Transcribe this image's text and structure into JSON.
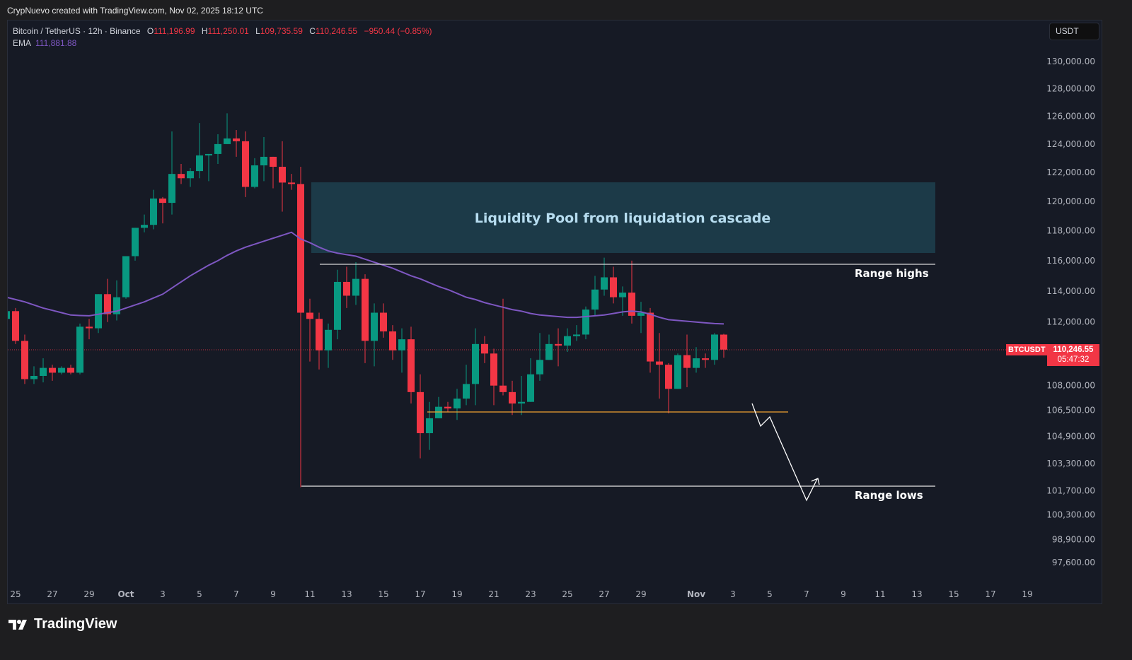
{
  "credit": "CrypNuevo created with TradingView.com, Nov 02, 2025 18:12 UTC",
  "legend": {
    "symbol": "Bitcoin / TetherUS · 12h · Binance",
    "o_label": "O",
    "o": "111,196.99",
    "h_label": "H",
    "h": "111,250.01",
    "l_label": "L",
    "l": "109,735.59",
    "c_label": "C",
    "c": "110,246.55",
    "change": "−950.44 (−0.85%)",
    "ema_label": "EMA",
    "ema": "111,881.88"
  },
  "currency_button": "USDT",
  "last_price": {
    "symbol": "BTCUSDT",
    "price": "110,246.55",
    "countdown": "05:47:32"
  },
  "brand": "TradingView",
  "colors": {
    "up": "#089981",
    "down": "#f23645",
    "ema": "#7e57c2",
    "zone": "#1c3a48",
    "support": "#f0a030"
  },
  "annotations": {
    "zone_label": "Liquidity Pool from liquidation cascade",
    "range_highs": "Range highs",
    "range_lows": "Range lows"
  },
  "chart_data": {
    "type": "candlestick",
    "interval": "12h",
    "y_scale": "log",
    "ylim": [
      96800,
      131500
    ],
    "grid": false,
    "y_ticks": [
      {
        "value": 130000,
        "label": "130,000.00"
      },
      {
        "value": 128000,
        "label": "128,000.00"
      },
      {
        "value": 126000,
        "label": "126,000.00"
      },
      {
        "value": 124000,
        "label": "124,000.00"
      },
      {
        "value": 122000,
        "label": "122,000.00"
      },
      {
        "value": 120000,
        "label": "120,000.00"
      },
      {
        "value": 118000,
        "label": "118,000.00"
      },
      {
        "value": 116000,
        "label": "116,000.00"
      },
      {
        "value": 114000,
        "label": "114,000.00"
      },
      {
        "value": 112000,
        "label": "112,000.00"
      },
      {
        "value": 108000,
        "label": "108,000.00"
      },
      {
        "value": 106500,
        "label": "106,500.00"
      },
      {
        "value": 104900,
        "label": "104,900.00"
      },
      {
        "value": 103300,
        "label": "103,300.00"
      },
      {
        "value": 101700,
        "label": "101,700.00"
      },
      {
        "value": 100300,
        "label": "100,300.00"
      },
      {
        "value": 98900,
        "label": "98,900.00"
      },
      {
        "value": 97600,
        "label": "97,600.00"
      }
    ],
    "x_ticks": [
      {
        "date": "2025-09-25",
        "label": "25"
      },
      {
        "date": "2025-09-27",
        "label": "27"
      },
      {
        "date": "2025-09-29",
        "label": "29"
      },
      {
        "date": "2025-10-01",
        "label": "Oct"
      },
      {
        "date": "2025-10-03",
        "label": "3"
      },
      {
        "date": "2025-10-05",
        "label": "5"
      },
      {
        "date": "2025-10-07",
        "label": "7"
      },
      {
        "date": "2025-10-09",
        "label": "9"
      },
      {
        "date": "2025-10-11",
        "label": "11"
      },
      {
        "date": "2025-10-13",
        "label": "13"
      },
      {
        "date": "2025-10-15",
        "label": "15"
      },
      {
        "date": "2025-10-17",
        "label": "17"
      },
      {
        "date": "2025-10-19",
        "label": "19"
      },
      {
        "date": "2025-10-21",
        "label": "21"
      },
      {
        "date": "2025-10-23",
        "label": "23"
      },
      {
        "date": "2025-10-25",
        "label": "25"
      },
      {
        "date": "2025-10-27",
        "label": "27"
      },
      {
        "date": "2025-10-29",
        "label": "29"
      },
      {
        "date": "2025-11-01",
        "label": "Nov"
      },
      {
        "date": "2025-11-03",
        "label": "3"
      },
      {
        "date": "2025-11-05",
        "label": "5"
      },
      {
        "date": "2025-11-07",
        "label": "7"
      },
      {
        "date": "2025-11-09",
        "label": "9"
      },
      {
        "date": "2025-11-11",
        "label": "11"
      },
      {
        "date": "2025-11-13",
        "label": "13"
      },
      {
        "date": "2025-11-15",
        "label": "15"
      },
      {
        "date": "2025-11-17",
        "label": "17"
      },
      {
        "date": "2025-11-19",
        "label": "19"
      }
    ],
    "candle_fields": [
      "time",
      "open",
      "high",
      "low",
      "close"
    ],
    "candles": [
      [
        "2025-09-24 12:00",
        112200,
        112900,
        111900,
        112700
      ],
      [
        "2025-09-25 00:00",
        112700,
        112900,
        110600,
        110800
      ],
      [
        "2025-09-25 12:00",
        110800,
        111200,
        108100,
        108400
      ],
      [
        "2025-09-26 00:00",
        108400,
        109200,
        108100,
        108600
      ],
      [
        "2025-09-26 12:00",
        108600,
        109700,
        108200,
        109100
      ],
      [
        "2025-09-27 00:00",
        109100,
        109300,
        108300,
        108800
      ],
      [
        "2025-09-27 12:00",
        108800,
        109200,
        108700,
        109100
      ],
      [
        "2025-09-28 00:00",
        109100,
        109300,
        108700,
        108800
      ],
      [
        "2025-09-28 12:00",
        108800,
        111900,
        108700,
        111700
      ],
      [
        "2025-09-29 00:00",
        111700,
        112200,
        110900,
        111600
      ],
      [
        "2025-09-29 12:00",
        111600,
        113800,
        111300,
        113800
      ],
      [
        "2025-09-30 00:00",
        113800,
        114800,
        112000,
        112500
      ],
      [
        "2025-09-30 12:00",
        112500,
        114700,
        112100,
        113600
      ],
      [
        "2025-10-01 00:00",
        113600,
        116300,
        113500,
        116300
      ],
      [
        "2025-10-01 12:00",
        116300,
        118200,
        116000,
        118200
      ],
      [
        "2025-10-02 00:00",
        118200,
        119100,
        117900,
        118400
      ],
      [
        "2025-10-02 12:00",
        118400,
        120800,
        118100,
        120200
      ],
      [
        "2025-10-03 00:00",
        120200,
        120300,
        118500,
        119900
      ],
      [
        "2025-10-03 12:00",
        119900,
        124900,
        119100,
        121900
      ],
      [
        "2025-10-04 00:00",
        121900,
        122600,
        121200,
        121600
      ],
      [
        "2025-10-04 12:00",
        121600,
        122300,
        121000,
        122100
      ],
      [
        "2025-10-05 00:00",
        122100,
        125500,
        121600,
        123200
      ],
      [
        "2025-10-05 12:00",
        123200,
        123300,
        121400,
        123300
      ],
      [
        "2025-10-06 00:00",
        123300,
        124700,
        122600,
        124000
      ],
      [
        "2025-10-06 12:00",
        124000,
        126200,
        124000,
        124400
      ],
      [
        "2025-10-07 00:00",
        124400,
        125000,
        123100,
        124200
      ],
      [
        "2025-10-07 12:00",
        124200,
        124900,
        120300,
        121000
      ],
      [
        "2025-10-08 00:00",
        121000,
        123000,
        120900,
        122500
      ],
      [
        "2025-10-08 12:00",
        122500,
        124500,
        121400,
        123100
      ],
      [
        "2025-10-09 00:00",
        123100,
        123100,
        120900,
        122400
      ],
      [
        "2025-10-09 12:00",
        122400,
        124200,
        119300,
        121300
      ],
      [
        "2025-10-10 00:00",
        121300,
        121900,
        120800,
        121200
      ],
      [
        "2025-10-10 12:00",
        121200,
        122400,
        101900,
        112600
      ],
      [
        "2025-10-11 00:00",
        112600,
        113500,
        109500,
        112200
      ],
      [
        "2025-10-11 12:00",
        112200,
        112600,
        109000,
        110200
      ],
      [
        "2025-10-12 00:00",
        110200,
        111900,
        109100,
        111500
      ],
      [
        "2025-10-12 12:00",
        111500,
        115400,
        110900,
        114600
      ],
      [
        "2025-10-13 00:00",
        114600,
        115600,
        112900,
        113700
      ],
      [
        "2025-10-13 12:00",
        113700,
        115900,
        113100,
        114800
      ],
      [
        "2025-10-14 00:00",
        114800,
        115100,
        109400,
        110800
      ],
      [
        "2025-10-14 12:00",
        110800,
        113200,
        109200,
        112600
      ],
      [
        "2025-10-15 00:00",
        112600,
        113200,
        111000,
        111400
      ],
      [
        "2025-10-15 12:00",
        111400,
        111800,
        109600,
        110200
      ],
      [
        "2025-10-16 00:00",
        110200,
        111600,
        108800,
        110900
      ],
      [
        "2025-10-16 12:00",
        110900,
        111700,
        106900,
        107600
      ],
      [
        "2025-10-17 00:00",
        107600,
        108700,
        103600,
        105100
      ],
      [
        "2025-10-17 12:00",
        105100,
        107000,
        104100,
        106000
      ],
      [
        "2025-10-18 00:00",
        106000,
        107300,
        106000,
        106700
      ],
      [
        "2025-10-18 12:00",
        106700,
        107000,
        106400,
        106600
      ],
      [
        "2025-10-19 00:00",
        106600,
        107800,
        105900,
        107200
      ],
      [
        "2025-10-19 12:00",
        107200,
        109300,
        106800,
        108100
      ],
      [
        "2025-10-20 00:00",
        108100,
        111600,
        106800,
        110600
      ],
      [
        "2025-10-20 12:00",
        110600,
        111100,
        109400,
        110000
      ],
      [
        "2025-10-21 00:00",
        110000,
        110300,
        106800,
        108000
      ],
      [
        "2025-10-21 12:00",
        108000,
        113500,
        107400,
        107600
      ],
      [
        "2025-10-22 00:00",
        107600,
        108300,
        106200,
        106900
      ],
      [
        "2025-10-22 12:00",
        106900,
        108600,
        106200,
        107000
      ],
      [
        "2025-10-23 00:00",
        107000,
        109700,
        107000,
        108700
      ],
      [
        "2025-10-23 12:00",
        108700,
        111300,
        108300,
        109600
      ],
      [
        "2025-10-24 00:00",
        109600,
        111200,
        109600,
        110600
      ],
      [
        "2025-10-24 12:00",
        110600,
        111600,
        109200,
        110500
      ],
      [
        "2025-10-25 00:00",
        110500,
        111600,
        110100,
        111100
      ],
      [
        "2025-10-25 12:00",
        111100,
        111800,
        110800,
        111200
      ],
      [
        "2025-10-26 00:00",
        111200,
        113000,
        110900,
        112800
      ],
      [
        "2025-10-26 12:00",
        112800,
        115000,
        112400,
        114100
      ],
      [
        "2025-10-27 00:00",
        114100,
        116200,
        113700,
        114900
      ],
      [
        "2025-10-27 12:00",
        114900,
        115600,
        113200,
        113600
      ],
      [
        "2025-10-28 00:00",
        113600,
        114300,
        112400,
        113900
      ],
      [
        "2025-10-28 12:00",
        113900,
        116000,
        111900,
        112400
      ],
      [
        "2025-10-29 00:00",
        112400,
        113300,
        111300,
        112600
      ],
      [
        "2025-10-29 12:00",
        112600,
        112900,
        108800,
        109500
      ],
      [
        "2025-10-30 00:00",
        109500,
        111300,
        107200,
        109300
      ],
      [
        "2025-10-30 12:00",
        109300,
        109400,
        106300,
        107800
      ],
      [
        "2025-10-31 00:00",
        107800,
        110000,
        107800,
        109900
      ],
      [
        "2025-10-31 12:00",
        109900,
        111200,
        107900,
        109100
      ],
      [
        "2025-11-01 00:00",
        109100,
        110400,
        108800,
        109700
      ],
      [
        "2025-11-01 12:00",
        109700,
        110000,
        109100,
        109600
      ],
      [
        "2025-11-02 00:00",
        109600,
        111300,
        109300,
        111200
      ],
      [
        "2025-11-02 12:00",
        111196.99,
        111250.01,
        109735.59,
        110246.55
      ]
    ],
    "ema": [
      113600,
      113450,
      113300,
      113100,
      112900,
      112750,
      112600,
      112450,
      112420,
      112400,
      112500,
      112600,
      112700,
      112900,
      113100,
      113300,
      113550,
      113800,
      114200,
      114600,
      115000,
      115350,
      115700,
      116000,
      116350,
      116650,
      116900,
      117100,
      117300,
      117500,
      117700,
      117900,
      117450,
      117200,
      116900,
      116650,
      116500,
      116400,
      116300,
      116100,
      115900,
      115700,
      115500,
      115250,
      115000,
      114800,
      114550,
      114300,
      114100,
      113850,
      113600,
      113450,
      113250,
      113100,
      112950,
      112800,
      112700,
      112550,
      112450,
      112400,
      112350,
      112300,
      112300,
      112350,
      112400,
      112450,
      112550,
      112650,
      112700,
      112650,
      112500,
      112300,
      112150,
      112100,
      112050,
      112000,
      111950,
      111900,
      111881.88
    ],
    "last_price": 110246.55
  }
}
